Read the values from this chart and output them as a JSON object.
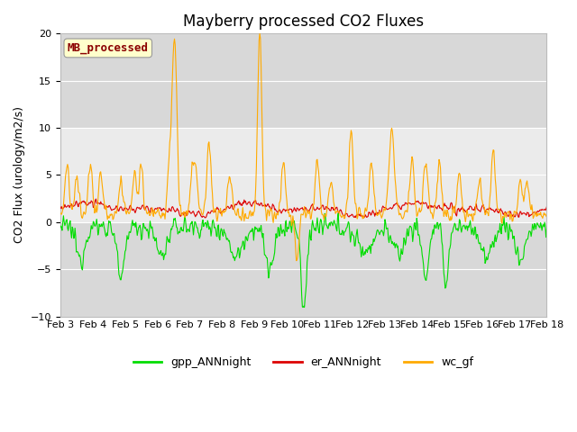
{
  "title": "Mayberry processed CO2 Fluxes",
  "ylabel": "CO2 Flux (urology/m2/s)",
  "ylim": [
    -10,
    20
  ],
  "yticks": [
    -10,
    -5,
    0,
    5,
    10,
    15,
    20
  ],
  "colors": {
    "gpp": "#00dd00",
    "er": "#dd0000",
    "wc": "#ffaa00"
  },
  "legend_label": "MB_processed",
  "legend_text_color": "#8b0000",
  "legend_bg": "#ffffcc",
  "bg_light": "#ebebeb",
  "bg_dark": "#d8d8d8",
  "xtick_labels": [
    "Feb 3",
    "Feb 4",
    "Feb 5",
    "Feb 6",
    "Feb 7",
    "Feb 8",
    "Feb 9",
    "Feb 10",
    "Feb 11",
    "Feb 12",
    "Feb 13",
    "Feb 14",
    "Feb 15",
    "Feb 16",
    "Feb 17",
    "Feb 18"
  ],
  "title_fontsize": 12,
  "label_fontsize": 9,
  "tick_fontsize": 8,
  "legend_fontsize": 9,
  "linewidth": 0.8
}
